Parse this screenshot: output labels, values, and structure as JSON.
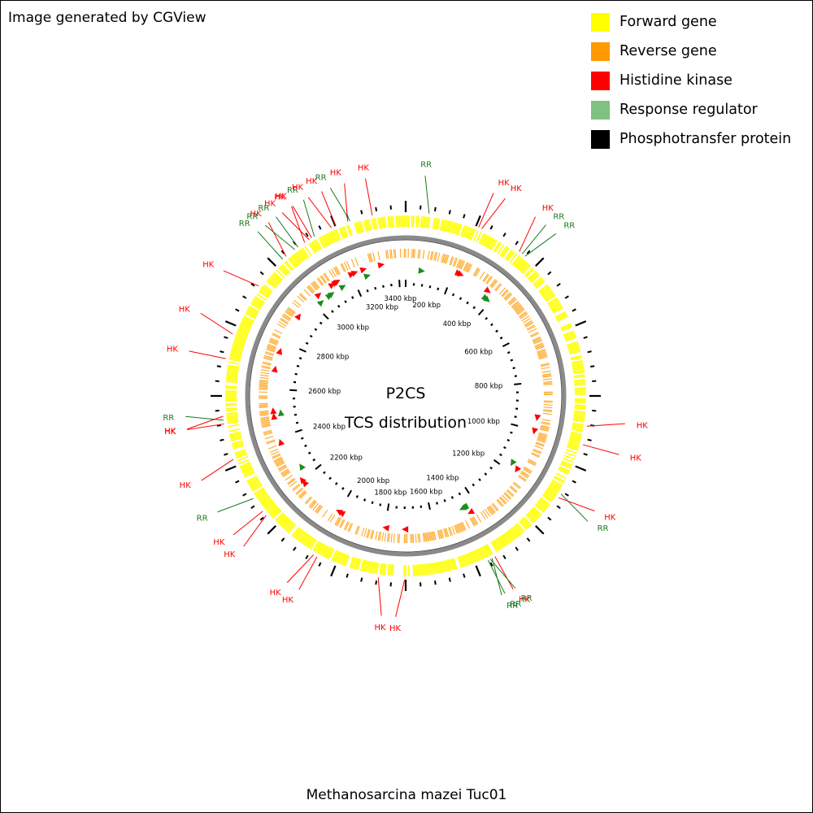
{
  "credit": "Image generated by CGView",
  "legend": [
    {
      "label": "Forward gene",
      "color": "#ffff00"
    },
    {
      "label": "Reverse gene",
      "color": "#ff9900"
    },
    {
      "label": "Histidine kinase",
      "color": "#ff0000"
    },
    {
      "label": "Response regulator",
      "color": "#80c080"
    },
    {
      "label": "Phosphotransfer protein",
      "color": "#000000"
    }
  ],
  "center": {
    "line1": "P2CS",
    "line2": "TCS distribution"
  },
  "organism": "Methanosarcina mazei Tuc01",
  "genome": {
    "length_kbp": 3430
  },
  "colors": {
    "hk": "#ff0000",
    "rr": "#1c7a1c",
    "marker_hk": "#ff0000",
    "marker_rr": "#1e8c1e",
    "backbone": "#8a8a8a",
    "forward": "#ffff00",
    "reverse": "#ff9900"
  },
  "axis": {
    "unit": "kbp",
    "labels": [
      {
        "kbp": 200,
        "text": "200 kbp"
      },
      {
        "kbp": 400,
        "text": "400 kbp"
      },
      {
        "kbp": 600,
        "text": "600 kbp"
      },
      {
        "kbp": 800,
        "text": "800 kbp"
      },
      {
        "kbp": 1000,
        "text": "1000 kbp"
      },
      {
        "kbp": 1200,
        "text": "1200 kbp"
      },
      {
        "kbp": 1400,
        "text": "1400 kbp"
      },
      {
        "kbp": 1600,
        "text": "1600 kbp"
      },
      {
        "kbp": 1800,
        "text": "1800 kbp"
      },
      {
        "kbp": 2000,
        "text": "2000 kbp"
      },
      {
        "kbp": 2200,
        "text": "2200 kbp"
      },
      {
        "kbp": 2400,
        "text": "2400 kbp"
      },
      {
        "kbp": 2600,
        "text": "2600 kbp"
      },
      {
        "kbp": 2800,
        "text": "2800 kbp"
      },
      {
        "kbp": 3000,
        "text": "3000 kbp"
      },
      {
        "kbp": 3200,
        "text": "3200 kbp"
      },
      {
        "kbp": 3400,
        "text": "3400 kbp"
      }
    ]
  },
  "features": [
    {
      "label": "RR",
      "kind": "rr",
      "kbp": 70
    },
    {
      "label": "HK",
      "kind": "hk",
      "kbp": 223
    },
    {
      "label": "HK",
      "kind": "hk",
      "kbp": 233
    },
    {
      "label": "HK",
      "kind": "hk",
      "kbp": 364
    },
    {
      "label": "RR",
      "kind": "rr",
      "kbp": 375
    },
    {
      "label": "RR",
      "kind": "rr",
      "kbp": 386
    },
    {
      "label": "HK",
      "kind": "hk",
      "kbp": 948
    },
    {
      "label": "HK",
      "kind": "hk",
      "kbp": 1004
    },
    {
      "label": "RR",
      "kind": "rr",
      "kbp": 1165
    },
    {
      "label": "HK",
      "kind": "hk",
      "kbp": 1178
    },
    {
      "label": "HK",
      "kind": "hk",
      "kbp": 1438
    },
    {
      "label": "RR",
      "kind": "rr",
      "kbp": 1448
    },
    {
      "label": "RR",
      "kind": "rr",
      "kbp": 1454
    },
    {
      "label": "RR",
      "kind": "rr",
      "kbp": 1461
    },
    {
      "label": "HK",
      "kind": "hk",
      "kbp": 1718
    },
    {
      "label": "HK",
      "kind": "hk",
      "kbp": 1797
    },
    {
      "label": "HK",
      "kind": "hk",
      "kbp": 1990
    },
    {
      "label": "HK",
      "kind": "hk",
      "kbp": 2002
    },
    {
      "label": "HK",
      "kind": "hk",
      "kbp": 2186
    },
    {
      "label": "HK",
      "kind": "hk",
      "kbp": 2202
    },
    {
      "label": "RR",
      "kind": "rr",
      "kbp": 2249
    },
    {
      "label": "HK",
      "kind": "hk",
      "kbp": 2380
    },
    {
      "label": "HK",
      "kind": "hk",
      "kbp": 2489
    },
    {
      "label": "RR",
      "kind": "rr",
      "kbp": 2500
    },
    {
      "label": "HK",
      "kind": "hk",
      "kbp": 2512
    },
    {
      "label": "HK",
      "kind": "hk",
      "kbp": 2684
    },
    {
      "label": "HK",
      "kind": "hk",
      "kbp": 2760
    },
    {
      "label": "HK",
      "kind": "hk",
      "kbp": 2923
    },
    {
      "label": "RR",
      "kind": "rr",
      "kbp": 3030
    },
    {
      "label": "HK",
      "kind": "hk",
      "kbp": 3043
    },
    {
      "label": "RR",
      "kind": "rr",
      "kbp": 3076
    },
    {
      "label": "RR",
      "kind": "rr",
      "kbp": 3088
    },
    {
      "label": "HK",
      "kind": "hk",
      "kbp": 3112
    },
    {
      "label": "HK",
      "kind": "hk",
      "kbp": 3128
    },
    {
      "label": "HK",
      "kind": "hk",
      "kbp": 3137
    },
    {
      "label": "RR",
      "kind": "rr",
      "kbp": 3146
    },
    {
      "label": "HK",
      "kind": "hk",
      "kbp": 3203
    },
    {
      "label": "HK",
      "kind": "hk",
      "kbp": 3217
    },
    {
      "label": "HK",
      "kind": "hk",
      "kbp": 3255
    },
    {
      "label": "RR",
      "kind": "rr",
      "kbp": 3262
    },
    {
      "label": "HK",
      "kind": "hk",
      "kbp": 3330
    }
  ]
}
